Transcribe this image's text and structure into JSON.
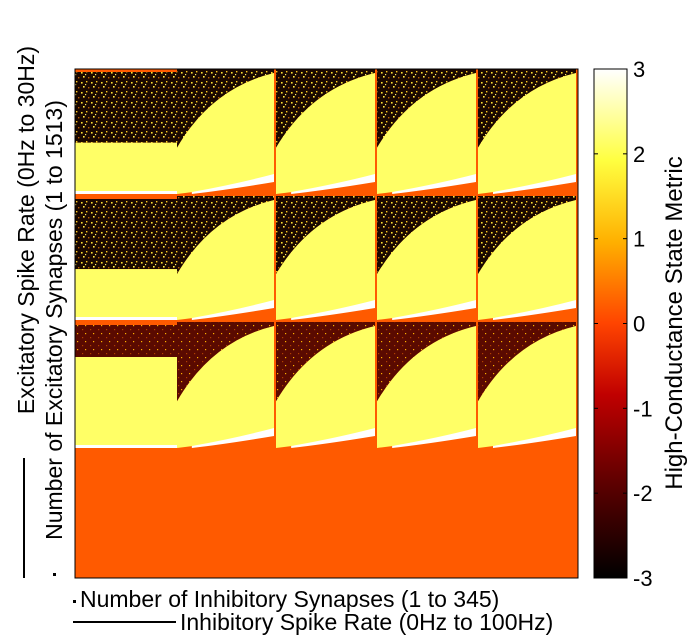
{
  "chart_data": {
    "type": "heatmap",
    "title": "",
    "xlabel_inner": "Number of Inhibitory Synapses (1 to 345)",
    "xlabel_outer": "Inhibitory Spike Rate (0Hz to 100Hz)",
    "ylabel_outer": "Excitatory Spike Rate (0Hz to 30Hz)",
    "ylabel_inner": "Number of Excitatory Synapses (1 to 1513)",
    "colorbar": {
      "label": "High-Conductance State Metric",
      "range": [
        -3,
        3
      ],
      "ticks": [
        "3",
        "2",
        "1",
        "0",
        "-1",
        "-2",
        "-3"
      ],
      "tick_values": [
        3,
        2,
        1,
        0,
        -1,
        -2,
        -3
      ]
    },
    "grid": {
      "excitatory_rate_blocks": 3,
      "inhibitory_rate_blocks": 5,
      "inhibitory_rate_blocks_visible": 4
    },
    "colormap": "hot",
    "colors": {
      "fill_value_color": "#ff5a00",
      "saturated_high": "#ffff66",
      "max": "#ffffff",
      "min": "#000000"
    }
  }
}
